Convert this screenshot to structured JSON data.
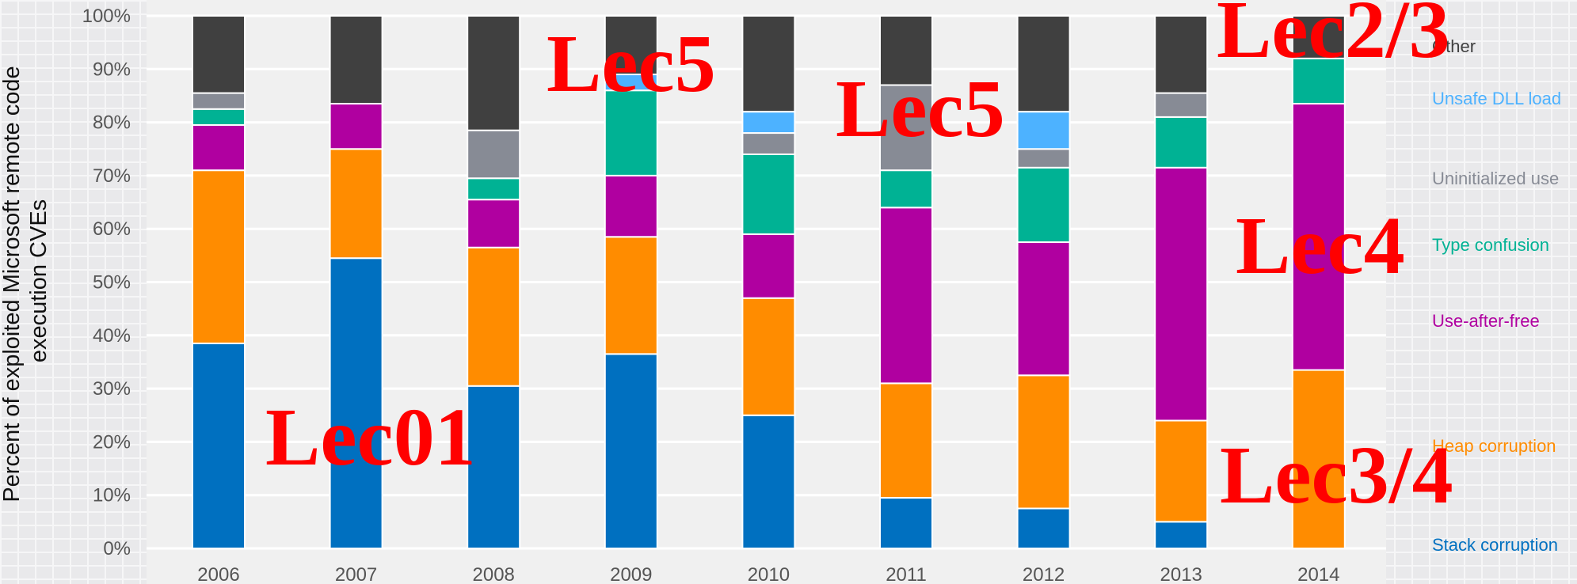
{
  "chart_data": {
    "type": "bar",
    "stacked": true,
    "title": "",
    "xlabel": "",
    "ylabel": "Percent of exploited Microsoft remote code execution CVEs",
    "ylabel_lines": [
      "Percent of exploited Microsoft remote code",
      "execution CVEs"
    ],
    "ylim": [
      0,
      100
    ],
    "y_ticks": [
      "0%",
      "10%",
      "20%",
      "30%",
      "40%",
      "50%",
      "60%",
      "70%",
      "80%",
      "90%",
      "100%"
    ],
    "grid": true,
    "legend_position": "right",
    "categories": [
      "2006",
      "2007",
      "2008",
      "2009",
      "2010",
      "2011",
      "2012",
      "2013",
      "2014"
    ],
    "series": [
      {
        "name": "Stack corruption",
        "color": "#0070c0",
        "values": [
          38.5,
          54.5,
          30.5,
          36.5,
          25,
          9.5,
          7.5,
          5,
          0
        ]
      },
      {
        "name": "Heap corruption",
        "color": "#ff8c00",
        "values": [
          32.5,
          20.5,
          26,
          22,
          22,
          21.5,
          25,
          19,
          33.5
        ]
      },
      {
        "name": "Use-after-free",
        "color": "#b000a0",
        "values": [
          8.5,
          8.5,
          9,
          11.5,
          12,
          33,
          25,
          47.5,
          50
        ]
      },
      {
        "name": "Type confusion",
        "color": "#00b294",
        "values": [
          3,
          0,
          4,
          16,
          15,
          7,
          14,
          9.5,
          8.5
        ]
      },
      {
        "name": "Uninitialized use",
        "color": "#878b95",
        "values": [
          3,
          0,
          9,
          0,
          4,
          16,
          3.5,
          4.5,
          0
        ]
      },
      {
        "name": "Unsafe DLL load",
        "color": "#4db2ff",
        "values": [
          0,
          0,
          0,
          3,
          4,
          0,
          7,
          0,
          0
        ]
      },
      {
        "name": "Other",
        "color": "#404040",
        "values": [
          14.5,
          16.5,
          21.5,
          11,
          18,
          13,
          18,
          14.5,
          8
        ]
      }
    ],
    "annotations": [
      {
        "text": "Lec01",
        "series": "Stack corruption"
      },
      {
        "text": "Lec5",
        "series": "Type confusion"
      },
      {
        "text": "Lec5",
        "series": "Unsafe DLL load"
      },
      {
        "text": "Lec2/3",
        "series": "Other"
      },
      {
        "text": "Lec4",
        "series": "Use-after-free"
      },
      {
        "text": "Lec3/4",
        "series": "Heap corruption"
      }
    ]
  }
}
